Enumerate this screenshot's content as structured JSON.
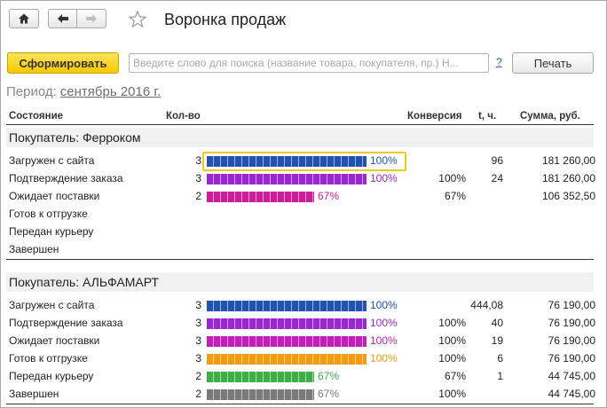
{
  "header": {
    "title": "Воронка продаж"
  },
  "toolbar": {
    "generate_label": "Сформировать",
    "search_placeholder": "Введите слово для поиска (название товара, покупателя, пр.) Н...",
    "help_label": "?",
    "print_label": "Печать"
  },
  "period": {
    "label": "Период:",
    "value": "сентябрь 2016 г."
  },
  "columns": {
    "state": "Состояние",
    "qty": "Кол-во",
    "conversion": "Конверсия",
    "time": "t, ч.",
    "sum": "Сумма, руб."
  },
  "colors": {
    "blue": "#2352b0",
    "purple": "#9a28d0",
    "magenta": "#cc1e9a",
    "orange": "#f39c12",
    "green": "#3fae49",
    "gray": "#7a7a7a",
    "highlight": "#f0c820"
  },
  "groups": [
    {
      "title": "Покупатель: Ферроком",
      "rows": [
        {
          "state": "Загружен с сайта",
          "qty": "3",
          "pct": "100%",
          "fill": 1.0,
          "color": "#2352b0",
          "conv": "",
          "t": "96",
          "sum": "181 260,00"
        },
        {
          "state": "Подтверждение заказа",
          "qty": "3",
          "pct": "100%",
          "fill": 1.0,
          "color": "#9a28d0",
          "conv": "100%",
          "t": "24",
          "sum": "181 260,00"
        },
        {
          "state": "Ожидает поставки",
          "qty": "2",
          "pct": "67%",
          "fill": 0.67,
          "color": "#cc1e9a",
          "conv": "67%",
          "t": "",
          "sum": "106 352,50"
        },
        {
          "state": "Готов к отгрузке",
          "qty": "",
          "pct": "",
          "fill": 0,
          "color": "#f39c12",
          "conv": "",
          "t": "",
          "sum": ""
        },
        {
          "state": "Передан курьеру",
          "qty": "",
          "pct": "",
          "fill": 0,
          "color": "#3fae49",
          "conv": "",
          "t": "",
          "sum": ""
        },
        {
          "state": "Завершен",
          "qty": "",
          "pct": "",
          "fill": 0,
          "color": "#7a7a7a",
          "conv": "",
          "t": "",
          "sum": ""
        }
      ]
    },
    {
      "title": "Покупатель: АЛЬФАМАРТ",
      "rows": [
        {
          "state": "Загружен с сайта",
          "qty": "3",
          "pct": "100%",
          "fill": 1.0,
          "color": "#2352b0",
          "conv": "",
          "t": "444,08",
          "sum": "76 190,00"
        },
        {
          "state": "Подтверждение заказа",
          "qty": "3",
          "pct": "100%",
          "fill": 1.0,
          "color": "#9a28d0",
          "conv": "100%",
          "t": "40",
          "sum": "76 190,00"
        },
        {
          "state": "Ожидает поставки",
          "qty": "3",
          "pct": "100%",
          "fill": 1.0,
          "color": "#c01fb8",
          "conv": "100%",
          "t": "19",
          "sum": "76 190,00"
        },
        {
          "state": "Готов к отгрузке",
          "qty": "3",
          "pct": "100%",
          "fill": 1.0,
          "color": "#f39c12",
          "conv": "100%",
          "t": "6",
          "sum": "76 190,00"
        },
        {
          "state": "Передан курьеру",
          "qty": "2",
          "pct": "67%",
          "fill": 0.67,
          "color": "#3fae49",
          "conv": "67%",
          "t": "1",
          "sum": "44 745,00"
        },
        {
          "state": "Завершен",
          "qty": "2",
          "pct": "67%",
          "fill": 0.67,
          "color": "#7a7a7a",
          "conv": "100%",
          "t": "",
          "sum": "44 745,00"
        }
      ]
    }
  ]
}
